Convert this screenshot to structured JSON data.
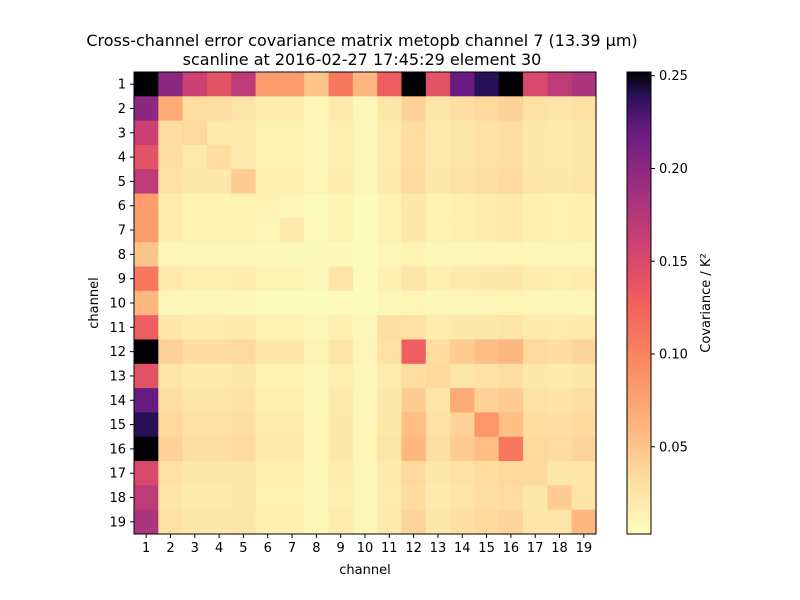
{
  "chart_data": {
    "type": "heatmap",
    "title": "Cross-channel error covariance matrix metopb channel 7 (13.39 µm)",
    "subtitle": "scanline at 2016-02-27 17:45:29 element 30",
    "xlabel": "channel",
    "ylabel": "channel",
    "categories": [
      "1",
      "2",
      "3",
      "4",
      "5",
      "6",
      "7",
      "8",
      "9",
      "10",
      "11",
      "12",
      "13",
      "14",
      "15",
      "16",
      "17",
      "18",
      "19"
    ],
    "colorbar": {
      "label": "Covariance / K²",
      "range": [
        0.003,
        0.252
      ],
      "colormap": "magma_r",
      "ticks": [
        "0.05",
        "0.10",
        "0.15",
        "0.20",
        "0.25"
      ],
      "tick_values": [
        0.05,
        0.1,
        0.15,
        0.2,
        0.25
      ]
    },
    "matrix": [
      [
        0.252,
        0.2,
        0.16,
        0.14,
        0.17,
        0.08,
        0.08,
        0.05,
        0.11,
        0.06,
        0.13,
        0.252,
        0.14,
        0.22,
        0.24,
        0.252,
        0.15,
        0.17,
        0.18
      ],
      [
        0.2,
        0.07,
        0.03,
        0.03,
        0.025,
        0.018,
        0.018,
        0.01,
        0.02,
        0.008,
        0.022,
        0.04,
        0.024,
        0.03,
        0.035,
        0.04,
        0.028,
        0.025,
        0.028
      ],
      [
        0.16,
        0.03,
        0.035,
        0.02,
        0.02,
        0.014,
        0.014,
        0.01,
        0.016,
        0.008,
        0.018,
        0.032,
        0.02,
        0.025,
        0.028,
        0.03,
        0.022,
        0.02,
        0.022
      ],
      [
        0.14,
        0.03,
        0.02,
        0.032,
        0.02,
        0.014,
        0.014,
        0.01,
        0.016,
        0.008,
        0.018,
        0.032,
        0.02,
        0.025,
        0.028,
        0.03,
        0.022,
        0.02,
        0.022
      ],
      [
        0.17,
        0.028,
        0.022,
        0.022,
        0.045,
        0.016,
        0.016,
        0.01,
        0.018,
        0.008,
        0.02,
        0.035,
        0.022,
        0.027,
        0.03,
        0.034,
        0.024,
        0.022,
        0.025
      ],
      [
        0.08,
        0.018,
        0.014,
        0.014,
        0.014,
        0.014,
        0.01,
        0.006,
        0.012,
        0.005,
        0.013,
        0.022,
        0.014,
        0.016,
        0.018,
        0.02,
        0.015,
        0.014,
        0.015
      ],
      [
        0.08,
        0.018,
        0.014,
        0.014,
        0.014,
        0.01,
        0.02,
        0.006,
        0.012,
        0.005,
        0.013,
        0.022,
        0.014,
        0.016,
        0.018,
        0.02,
        0.015,
        0.014,
        0.015
      ],
      [
        0.05,
        0.01,
        0.008,
        0.008,
        0.008,
        0.007,
        0.007,
        0.007,
        0.007,
        0.004,
        0.008,
        0.012,
        0.008,
        0.009,
        0.01,
        0.011,
        0.009,
        0.008,
        0.009
      ],
      [
        0.11,
        0.02,
        0.016,
        0.016,
        0.018,
        0.012,
        0.012,
        0.007,
        0.025,
        0.006,
        0.015,
        0.025,
        0.016,
        0.019,
        0.021,
        0.023,
        0.017,
        0.016,
        0.018
      ],
      [
        0.06,
        0.008,
        0.008,
        0.008,
        0.008,
        0.006,
        0.006,
        0.004,
        0.006,
        0.006,
        0.008,
        0.011,
        0.008,
        0.009,
        0.01,
        0.011,
        0.009,
        0.008,
        0.009
      ],
      [
        0.13,
        0.022,
        0.018,
        0.018,
        0.02,
        0.013,
        0.013,
        0.008,
        0.015,
        0.008,
        0.03,
        0.028,
        0.018,
        0.021,
        0.023,
        0.025,
        0.019,
        0.018,
        0.02
      ],
      [
        0.252,
        0.04,
        0.032,
        0.032,
        0.035,
        0.022,
        0.022,
        0.013,
        0.025,
        0.011,
        0.028,
        0.13,
        0.032,
        0.045,
        0.055,
        0.06,
        0.035,
        0.032,
        0.038
      ],
      [
        0.14,
        0.024,
        0.02,
        0.02,
        0.022,
        0.014,
        0.014,
        0.008,
        0.016,
        0.008,
        0.018,
        0.032,
        0.035,
        0.025,
        0.028,
        0.03,
        0.022,
        0.02,
        0.022
      ],
      [
        0.22,
        0.03,
        0.025,
        0.025,
        0.027,
        0.016,
        0.016,
        0.009,
        0.019,
        0.009,
        0.021,
        0.045,
        0.025,
        0.07,
        0.04,
        0.045,
        0.028,
        0.026,
        0.03
      ],
      [
        0.24,
        0.035,
        0.028,
        0.028,
        0.03,
        0.018,
        0.018,
        0.01,
        0.021,
        0.01,
        0.023,
        0.055,
        0.028,
        0.04,
        0.085,
        0.055,
        0.032,
        0.03,
        0.034
      ],
      [
        0.252,
        0.04,
        0.03,
        0.03,
        0.034,
        0.02,
        0.02,
        0.011,
        0.023,
        0.011,
        0.025,
        0.06,
        0.03,
        0.045,
        0.055,
        0.11,
        0.035,
        0.033,
        0.038
      ],
      [
        0.15,
        0.028,
        0.022,
        0.022,
        0.024,
        0.015,
        0.015,
        0.009,
        0.017,
        0.009,
        0.019,
        0.035,
        0.022,
        0.028,
        0.032,
        0.035,
        0.035,
        0.022,
        0.024
      ],
      [
        0.17,
        0.025,
        0.02,
        0.02,
        0.022,
        0.014,
        0.014,
        0.008,
        0.016,
        0.008,
        0.018,
        0.032,
        0.02,
        0.026,
        0.03,
        0.033,
        0.022,
        0.045,
        0.024
      ],
      [
        0.18,
        0.028,
        0.022,
        0.022,
        0.025,
        0.015,
        0.015,
        0.009,
        0.018,
        0.009,
        0.02,
        0.038,
        0.022,
        0.03,
        0.034,
        0.038,
        0.024,
        0.024,
        0.06
      ]
    ]
  }
}
